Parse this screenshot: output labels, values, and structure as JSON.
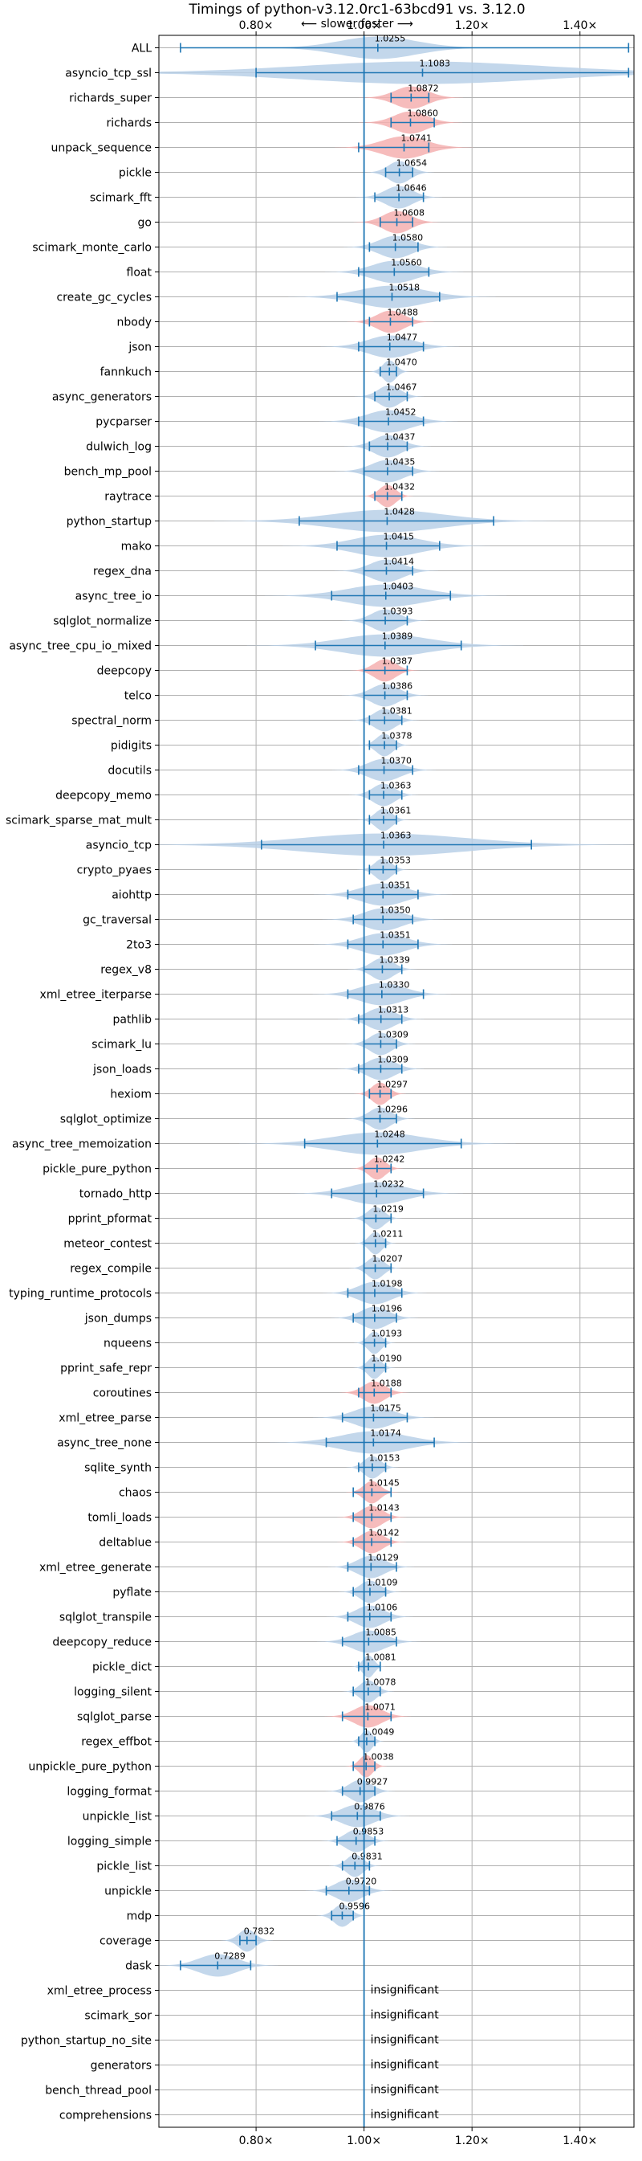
{
  "chart_data": {
    "type": "violin",
    "title": "Timings of python-v3.12.0rc1-63bcd91 vs. 3.12.0",
    "direction_hint": "⟵ slower   faster ⟶",
    "xlim": [
      0.62,
      1.5
    ],
    "xticks": [
      0.8,
      1.0,
      1.2,
      1.4
    ],
    "xtick_labels": [
      "0.80×",
      "1.00×",
      "1.20×",
      "1.40×"
    ],
    "reference_line": 1.0,
    "insignificant_label": "insignificant",
    "colors": {
      "faster": "#b8d0e8",
      "slower": "#f4b0b0",
      "errorbar": "#1f77b4",
      "grid": "#b0b0b0"
    },
    "benchmarks": [
      {
        "name": "ALL",
        "value": 1.0255,
        "label": "1.0255",
        "lo": 0.66,
        "hi": 1.49,
        "spread": 0.07,
        "color": "faster"
      },
      {
        "name": "asyncio_tcp_ssl",
        "value": 1.1083,
        "label": "1.1083",
        "lo": 0.8,
        "hi": 1.49,
        "spread": 0.22,
        "color": "faster"
      },
      {
        "name": "richards_super",
        "value": 1.0872,
        "label": "1.0872",
        "lo": 1.05,
        "hi": 1.12,
        "spread": 0.03,
        "color": "slower"
      },
      {
        "name": "richards",
        "value": 1.086,
        "label": "1.0860",
        "lo": 1.05,
        "hi": 1.13,
        "spread": 0.03,
        "color": "slower"
      },
      {
        "name": "unpack_sequence",
        "value": 1.0741,
        "label": "1.0741",
        "lo": 0.99,
        "hi": 1.12,
        "spread": 0.04,
        "color": "slower"
      },
      {
        "name": "pickle",
        "value": 1.0654,
        "label": "1.0654",
        "lo": 1.04,
        "hi": 1.09,
        "spread": 0.02,
        "color": "faster"
      },
      {
        "name": "scimark_fft",
        "value": 1.0646,
        "label": "1.0646",
        "lo": 1.02,
        "hi": 1.11,
        "spread": 0.025,
        "color": "faster"
      },
      {
        "name": "go",
        "value": 1.0608,
        "label": "1.0608",
        "lo": 1.03,
        "hi": 1.09,
        "spread": 0.025,
        "color": "slower"
      },
      {
        "name": "scimark_monte_carlo",
        "value": 1.058,
        "label": "1.0580",
        "lo": 1.01,
        "hi": 1.1,
        "spread": 0.03,
        "color": "faster"
      },
      {
        "name": "float",
        "value": 1.056,
        "label": "1.0560",
        "lo": 0.99,
        "hi": 1.12,
        "spread": 0.04,
        "color": "faster"
      },
      {
        "name": "create_gc_cycles",
        "value": 1.0518,
        "label": "1.0518",
        "lo": 0.95,
        "hi": 1.14,
        "spread": 0.06,
        "color": "faster"
      },
      {
        "name": "nbody",
        "value": 1.0488,
        "label": "1.0488",
        "lo": 1.01,
        "hi": 1.09,
        "spread": 0.025,
        "color": "slower"
      },
      {
        "name": "json",
        "value": 1.0477,
        "label": "1.0477",
        "lo": 0.99,
        "hi": 1.11,
        "spread": 0.04,
        "color": "faster"
      },
      {
        "name": "fannkuch",
        "value": 1.047,
        "label": "1.0470",
        "lo": 1.03,
        "hi": 1.06,
        "spread": 0.012,
        "color": "faster"
      },
      {
        "name": "async_generators",
        "value": 1.0467,
        "label": "1.0467",
        "lo": 1.02,
        "hi": 1.08,
        "spread": 0.02,
        "color": "faster"
      },
      {
        "name": "pycparser",
        "value": 1.0452,
        "label": "1.0452",
        "lo": 0.99,
        "hi": 1.11,
        "spread": 0.04,
        "color": "faster"
      },
      {
        "name": "dulwich_log",
        "value": 1.0437,
        "label": "1.0437",
        "lo": 1.01,
        "hi": 1.08,
        "spread": 0.025,
        "color": "faster"
      },
      {
        "name": "bench_mp_pool",
        "value": 1.0435,
        "label": "1.0435",
        "lo": 1.0,
        "hi": 1.09,
        "spread": 0.03,
        "color": "faster"
      },
      {
        "name": "raytrace",
        "value": 1.0432,
        "label": "1.0432",
        "lo": 1.02,
        "hi": 1.07,
        "spread": 0.015,
        "color": "slower"
      },
      {
        "name": "python_startup",
        "value": 1.0428,
        "label": "1.0428",
        "lo": 0.88,
        "hi": 1.24,
        "spread": 0.1,
        "color": "faster"
      },
      {
        "name": "mako",
        "value": 1.0415,
        "label": "1.0415",
        "lo": 0.95,
        "hi": 1.14,
        "spread": 0.06,
        "color": "faster"
      },
      {
        "name": "regex_dna",
        "value": 1.0414,
        "label": "1.0414",
        "lo": 1.0,
        "hi": 1.09,
        "spread": 0.03,
        "color": "faster"
      },
      {
        "name": "async_tree_io",
        "value": 1.0403,
        "label": "1.0403",
        "lo": 0.94,
        "hi": 1.16,
        "spread": 0.07,
        "color": "faster"
      },
      {
        "name": "sqlglot_normalize",
        "value": 1.0393,
        "label": "1.0393",
        "lo": 1.0,
        "hi": 1.08,
        "spread": 0.025,
        "color": "faster"
      },
      {
        "name": "async_tree_cpu_io_mixed",
        "value": 1.0389,
        "label": "1.0389",
        "lo": 0.91,
        "hi": 1.18,
        "spread": 0.08,
        "color": "faster"
      },
      {
        "name": "deepcopy",
        "value": 1.0387,
        "label": "1.0387",
        "lo": 1.0,
        "hi": 1.08,
        "spread": 0.02,
        "color": "slower"
      },
      {
        "name": "telco",
        "value": 1.0386,
        "label": "1.0386",
        "lo": 1.0,
        "hi": 1.08,
        "spread": 0.025,
        "color": "faster"
      },
      {
        "name": "spectral_norm",
        "value": 1.0381,
        "label": "1.0381",
        "lo": 1.01,
        "hi": 1.07,
        "spread": 0.02,
        "color": "faster"
      },
      {
        "name": "pidigits",
        "value": 1.0378,
        "label": "1.0378",
        "lo": 1.01,
        "hi": 1.06,
        "spread": 0.015,
        "color": "faster"
      },
      {
        "name": "docutils",
        "value": 1.037,
        "label": "1.0370",
        "lo": 0.99,
        "hi": 1.09,
        "spread": 0.03,
        "color": "faster"
      },
      {
        "name": "deepcopy_memo",
        "value": 1.0363,
        "label": "1.0363",
        "lo": 1.01,
        "hi": 1.07,
        "spread": 0.02,
        "color": "faster"
      },
      {
        "name": "scimark_sparse_mat_mult",
        "value": 1.0361,
        "label": "1.0361",
        "lo": 1.01,
        "hi": 1.06,
        "spread": 0.015,
        "color": "faster"
      },
      {
        "name": "asyncio_tcp",
        "value": 1.0363,
        "label": "1.0363",
        "lo": 0.81,
        "hi": 1.31,
        "spread": 0.15,
        "color": "faster"
      },
      {
        "name": "crypto_pyaes",
        "value": 1.0353,
        "label": "1.0353",
        "lo": 1.01,
        "hi": 1.06,
        "spread": 0.015,
        "color": "faster"
      },
      {
        "name": "aiohttp",
        "value": 1.0351,
        "label": "1.0351",
        "lo": 0.97,
        "hi": 1.1,
        "spread": 0.04,
        "color": "faster"
      },
      {
        "name": "gc_traversal",
        "value": 1.035,
        "label": "1.0350",
        "lo": 0.98,
        "hi": 1.09,
        "spread": 0.035,
        "color": "faster"
      },
      {
        "name": "2to3",
        "value": 1.0351,
        "label": "1.0351",
        "lo": 0.97,
        "hi": 1.1,
        "spread": 0.04,
        "color": "faster"
      },
      {
        "name": "regex_v8",
        "value": 1.0339,
        "label": "1.0339",
        "lo": 1.0,
        "hi": 1.07,
        "spread": 0.02,
        "color": "faster"
      },
      {
        "name": "xml_etree_iterparse",
        "value": 1.033,
        "label": "1.0330",
        "lo": 0.97,
        "hi": 1.11,
        "spread": 0.04,
        "color": "faster"
      },
      {
        "name": "pathlib",
        "value": 1.0313,
        "label": "1.0313",
        "lo": 0.99,
        "hi": 1.07,
        "spread": 0.025,
        "color": "faster"
      },
      {
        "name": "scimark_lu",
        "value": 1.0309,
        "label": "1.0309",
        "lo": 1.0,
        "hi": 1.06,
        "spread": 0.02,
        "color": "faster"
      },
      {
        "name": "json_loads",
        "value": 1.0309,
        "label": "1.0309",
        "lo": 0.99,
        "hi": 1.07,
        "spread": 0.025,
        "color": "faster"
      },
      {
        "name": "hexiom",
        "value": 1.0297,
        "label": "1.0297",
        "lo": 1.01,
        "hi": 1.05,
        "spread": 0.015,
        "color": "slower"
      },
      {
        "name": "sqlglot_optimize",
        "value": 1.0296,
        "label": "1.0296",
        "lo": 1.0,
        "hi": 1.06,
        "spread": 0.02,
        "color": "faster"
      },
      {
        "name": "async_tree_memoization",
        "value": 1.0248,
        "label": "1.0248",
        "lo": 0.89,
        "hi": 1.18,
        "spread": 0.08,
        "color": "faster"
      },
      {
        "name": "pickle_pure_python",
        "value": 1.0242,
        "label": "1.0242",
        "lo": 1.0,
        "hi": 1.05,
        "spread": 0.015,
        "color": "slower"
      },
      {
        "name": "tornado_http",
        "value": 1.0232,
        "label": "1.0232",
        "lo": 0.94,
        "hi": 1.11,
        "spread": 0.05,
        "color": "faster"
      },
      {
        "name": "pprint_pformat",
        "value": 1.0219,
        "label": "1.0219",
        "lo": 1.0,
        "hi": 1.05,
        "spread": 0.015,
        "color": "faster"
      },
      {
        "name": "meteor_contest",
        "value": 1.0211,
        "label": "1.0211",
        "lo": 1.0,
        "hi": 1.04,
        "spread": 0.012,
        "color": "faster"
      },
      {
        "name": "regex_compile",
        "value": 1.0207,
        "label": "1.0207",
        "lo": 1.0,
        "hi": 1.05,
        "spread": 0.015,
        "color": "faster"
      },
      {
        "name": "typing_runtime_protocols",
        "value": 1.0198,
        "label": "1.0198",
        "lo": 0.97,
        "hi": 1.07,
        "spread": 0.03,
        "color": "faster"
      },
      {
        "name": "json_dumps",
        "value": 1.0196,
        "label": "1.0196",
        "lo": 0.98,
        "hi": 1.06,
        "spread": 0.025,
        "color": "faster"
      },
      {
        "name": "nqueens",
        "value": 1.0193,
        "label": "1.0193",
        "lo": 1.0,
        "hi": 1.04,
        "spread": 0.012,
        "color": "faster"
      },
      {
        "name": "pprint_safe_repr",
        "value": 1.019,
        "label": "1.0190",
        "lo": 1.0,
        "hi": 1.04,
        "spread": 0.012,
        "color": "faster"
      },
      {
        "name": "coroutines",
        "value": 1.0188,
        "label": "1.0188",
        "lo": 0.99,
        "hi": 1.05,
        "spread": 0.02,
        "color": "slower"
      },
      {
        "name": "xml_etree_parse",
        "value": 1.0175,
        "label": "1.0175",
        "lo": 0.96,
        "hi": 1.08,
        "spread": 0.035,
        "color": "faster"
      },
      {
        "name": "async_tree_none",
        "value": 1.0174,
        "label": "1.0174",
        "lo": 0.93,
        "hi": 1.13,
        "spread": 0.06,
        "color": "faster"
      },
      {
        "name": "sqlite_synth",
        "value": 1.0153,
        "label": "1.0153",
        "lo": 0.99,
        "hi": 1.04,
        "spread": 0.015,
        "color": "faster"
      },
      {
        "name": "chaos",
        "value": 1.0145,
        "label": "1.0145",
        "lo": 0.98,
        "hi": 1.05,
        "spread": 0.015,
        "color": "slower"
      },
      {
        "name": "tomli_loads",
        "value": 1.0143,
        "label": "1.0143",
        "lo": 0.98,
        "hi": 1.05,
        "spread": 0.02,
        "color": "slower"
      },
      {
        "name": "deltablue",
        "value": 1.0142,
        "label": "1.0142",
        "lo": 0.98,
        "hi": 1.05,
        "spread": 0.02,
        "color": "slower"
      },
      {
        "name": "xml_etree_generate",
        "value": 1.0129,
        "label": "1.0129",
        "lo": 0.97,
        "hi": 1.06,
        "spread": 0.025,
        "color": "faster"
      },
      {
        "name": "pyflate",
        "value": 1.0109,
        "label": "1.0109",
        "lo": 0.98,
        "hi": 1.04,
        "spread": 0.018,
        "color": "faster"
      },
      {
        "name": "sqlglot_transpile",
        "value": 1.0106,
        "label": "1.0106",
        "lo": 0.97,
        "hi": 1.05,
        "spread": 0.025,
        "color": "faster"
      },
      {
        "name": "deepcopy_reduce",
        "value": 1.0085,
        "label": "1.0085",
        "lo": 0.96,
        "hi": 1.06,
        "spread": 0.03,
        "color": "faster"
      },
      {
        "name": "pickle_dict",
        "value": 1.0081,
        "label": "1.0081",
        "lo": 0.99,
        "hi": 1.03,
        "spread": 0.01,
        "color": "faster"
      },
      {
        "name": "logging_silent",
        "value": 1.0078,
        "label": "1.0078",
        "lo": 0.98,
        "hi": 1.03,
        "spread": 0.015,
        "color": "faster"
      },
      {
        "name": "sqlglot_parse",
        "value": 1.0071,
        "label": "1.0071",
        "lo": 0.96,
        "hi": 1.05,
        "spread": 0.025,
        "color": "slower"
      },
      {
        "name": "regex_effbot",
        "value": 1.0049,
        "label": "1.0049",
        "lo": 0.99,
        "hi": 1.02,
        "spread": 0.01,
        "color": "faster"
      },
      {
        "name": "unpickle_pure_python",
        "value": 1.0038,
        "label": "1.0038",
        "lo": 0.98,
        "hi": 1.02,
        "spread": 0.012,
        "color": "slower"
      },
      {
        "name": "logging_format",
        "value": 0.9927,
        "label": "0.9927",
        "lo": 0.96,
        "hi": 1.02,
        "spread": 0.02,
        "color": "faster"
      },
      {
        "name": "unpickle_list",
        "value": 0.9876,
        "label": "0.9876",
        "lo": 0.94,
        "hi": 1.03,
        "spread": 0.03,
        "color": "faster"
      },
      {
        "name": "logging_simple",
        "value": 0.9853,
        "label": "0.9853",
        "lo": 0.95,
        "hi": 1.02,
        "spread": 0.02,
        "color": "faster"
      },
      {
        "name": "pickle_list",
        "value": 0.9831,
        "label": "0.9831",
        "lo": 0.96,
        "hi": 1.01,
        "spread": 0.015,
        "color": "faster"
      },
      {
        "name": "unpickle",
        "value": 0.972,
        "label": "0.9720",
        "lo": 0.93,
        "hi": 1.01,
        "spread": 0.025,
        "color": "faster"
      },
      {
        "name": "mdp",
        "value": 0.9596,
        "label": "0.9596",
        "lo": 0.94,
        "hi": 0.98,
        "spread": 0.015,
        "color": "faster"
      },
      {
        "name": "coverage",
        "value": 0.7832,
        "label": "0.7832",
        "lo": 0.77,
        "hi": 0.8,
        "spread": 0.015,
        "color": "faster"
      },
      {
        "name": "dask",
        "value": 0.7289,
        "label": "0.7289",
        "lo": 0.66,
        "hi": 0.79,
        "spread": 0.035,
        "color": "faster"
      },
      {
        "name": "xml_etree_process",
        "insignificant": true
      },
      {
        "name": "scimark_sor",
        "insignificant": true
      },
      {
        "name": "python_startup_no_site",
        "insignificant": true
      },
      {
        "name": "generators",
        "insignificant": true
      },
      {
        "name": "bench_thread_pool",
        "insignificant": true
      },
      {
        "name": "comprehensions",
        "insignificant": true
      }
    ]
  }
}
